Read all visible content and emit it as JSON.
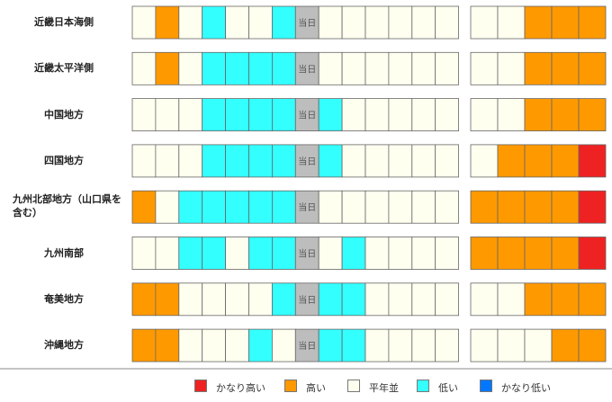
{
  "chart_data": {
    "type": "heatmap",
    "title": "",
    "today_label": "当日",
    "rows": [
      {
        "region": "近畿日本海側",
        "weekly": [
          "平年並",
          "高い",
          "平年並",
          "低い",
          "平年並",
          "平年並",
          "低い",
          "当日",
          "平年並",
          "平年並",
          "平年並",
          "平年並",
          "平年並",
          "平年並"
        ],
        "outlook": [
          "平年並",
          "平年並",
          "高い",
          "高い",
          "高い"
        ]
      },
      {
        "region": "近畿太平洋側",
        "weekly": [
          "平年並",
          "高い",
          "平年並",
          "低い",
          "低い",
          "低い",
          "低い",
          "当日",
          "平年並",
          "平年並",
          "平年並",
          "平年並",
          "平年並",
          "平年並"
        ],
        "outlook": [
          "平年並",
          "平年並",
          "高い",
          "高い",
          "高い"
        ]
      },
      {
        "region": "中国地方",
        "weekly": [
          "平年並",
          "平年並",
          "平年並",
          "低い",
          "低い",
          "低い",
          "低い",
          "当日",
          "低い",
          "平年並",
          "平年並",
          "平年並",
          "平年並",
          "平年並"
        ],
        "outlook": [
          "平年並",
          "平年並",
          "高い",
          "高い",
          "高い"
        ]
      },
      {
        "region": "四国地方",
        "weekly": [
          "平年並",
          "平年並",
          "平年並",
          "低い",
          "低い",
          "低い",
          "低い",
          "当日",
          "低い",
          "平年並",
          "平年並",
          "平年並",
          "平年並",
          "平年並"
        ],
        "outlook": [
          "平年並",
          "高い",
          "高い",
          "高い",
          "かなり高い"
        ]
      },
      {
        "region": "九州北部地方（山口県を含む）",
        "weekly": [
          "高い",
          "平年並",
          "低い",
          "低い",
          "低い",
          "低い",
          "低い",
          "当日",
          "平年並",
          "平年並",
          "平年並",
          "平年並",
          "平年並",
          "平年並"
        ],
        "outlook": [
          "高い",
          "高い",
          "高い",
          "高い",
          "かなり高い"
        ]
      },
      {
        "region": "九州南部",
        "weekly": [
          "平年並",
          "平年並",
          "低い",
          "低い",
          "平年並",
          "低い",
          "低い",
          "当日",
          "平年並",
          "低い",
          "平年並",
          "平年並",
          "平年並",
          "平年並"
        ],
        "outlook": [
          "高い",
          "高い",
          "高い",
          "高い",
          "かなり高い"
        ]
      },
      {
        "region": "奄美地方",
        "weekly": [
          "高い",
          "高い",
          "平年並",
          "平年並",
          "平年並",
          "平年並",
          "低い",
          "当日",
          "低い",
          "低い",
          "平年並",
          "平年並",
          "平年並",
          "平年並"
        ],
        "outlook": [
          "平年並",
          "平年並",
          "高い",
          "高い",
          "高い"
        ]
      },
      {
        "region": "沖縄地方",
        "weekly": [
          "高い",
          "高い",
          "平年並",
          "平年並",
          "平年並",
          "低い",
          "平年並",
          "当日",
          "低い",
          "低い",
          "平年並",
          "平年並",
          "平年並",
          "平年並"
        ],
        "outlook": [
          "平年並",
          "平年並",
          "平年並",
          "高い",
          "高い"
        ]
      }
    ],
    "legend": [
      {
        "label": "かなり高い",
        "color": "#ee2222"
      },
      {
        "label": "高い",
        "color": "#ff9900"
      },
      {
        "label": "平年並",
        "color": "#fffff0"
      },
      {
        "label": "低い",
        "color": "#33ffff"
      },
      {
        "label": "かなり低い",
        "color": "#0077ff"
      }
    ],
    "today_color": "#bdbdbd"
  }
}
